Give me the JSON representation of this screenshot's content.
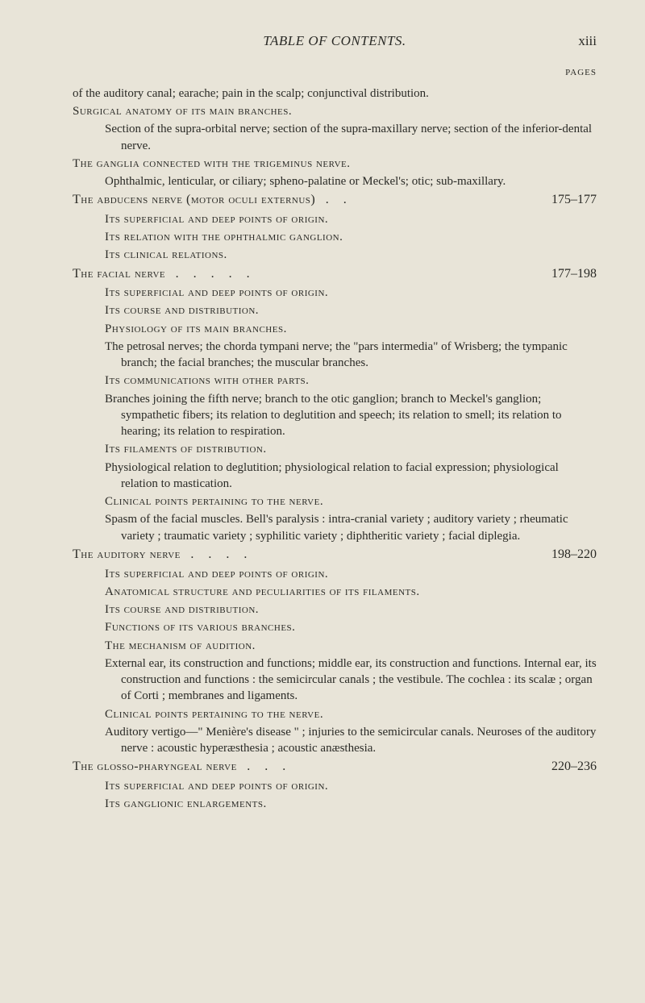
{
  "header": {
    "running_title": "TABLE OF CONTENTS.",
    "page_number": "xiii",
    "pages_label": "PAGES"
  },
  "entries": {
    "e1": "of the auditory canal; earache; pain in the scalp; conjunctival distribution.",
    "e2": "Surgical anatomy of its main branches.",
    "e3": "Section of the supra-orbital nerve; section of the supra-maxillary nerve; section of the inferior-dental nerve.",
    "e4": "The ganglia connected with the trigeminus nerve.",
    "e5": "Ophthalmic, lenticular, or ciliary; spheno-palatine or Meckel's; otic; sub-maxillary.",
    "e6": "The abducens nerve (motor oculi externus)",
    "e6_pages": "175–177",
    "e7": "Its superficial and deep points of origin.",
    "e8": "Its relation with the ophthalmic ganglion.",
    "e9": "Its clinical relations.",
    "e10": "The facial nerve",
    "e10_pages": "177–198",
    "e11": "Its superficial and deep points of origin.",
    "e12": "Its course and distribution.",
    "e13": "Physiology of its main branches.",
    "e14": "The petrosal nerves; the chorda tympani nerve; the \"pars intermedia\" of Wrisberg; the tympanic branch; the facial branches; the muscular branches.",
    "e15": "Its communications with other parts.",
    "e16": "Branches joining the fifth nerve; branch to the otic ganglion; branch to Meckel's ganglion; sympathetic fibers; its relation to deglutition and speech; its relation to smell; its relation to hearing; its relation to respiration.",
    "e17": "Its filaments of distribution.",
    "e18": "Physiological relation to deglutition; physiological relation to facial expression; physiological relation to mastication.",
    "e19": "Clinical points pertaining to the nerve.",
    "e20": "Spasm of the facial muscles. Bell's paralysis : intra-cranial variety ; auditory variety ; rheumatic variety ; traumatic variety ; syphilitic variety ; diphtheritic variety ; facial diplegia.",
    "e21": "The auditory nerve",
    "e21_pages": "198–220",
    "e22": "Its superficial and deep points of origin.",
    "e23": "Anatomical structure and peculiarities of its filaments.",
    "e24": "Its course and distribution.",
    "e25": "Functions of its various branches.",
    "e26": "The mechanism of audition.",
    "e27": "External ear, its construction and functions; middle ear, its construction and functions. Internal ear, its construction and functions : the semicircular canals ; the vestibule. The cochlea : its scalæ ; organ of Corti ; membranes and ligaments.",
    "e28": "Clinical points pertaining to the nerve.",
    "e29": "Auditory vertigo—\" Menière's disease \" ; injuries to the semicircular canals. Neuroses of the auditory nerve : acoustic hyperæsthesia ; acoustic anæsthesia.",
    "e30": "The glosso-pharyngeal nerve",
    "e30_pages": "220–236",
    "e31": "Its superficial and deep points of origin.",
    "e32": "Its ganglionic enlargements."
  },
  "colors": {
    "background": "#e8e4d8",
    "text": "#2a2a26"
  }
}
